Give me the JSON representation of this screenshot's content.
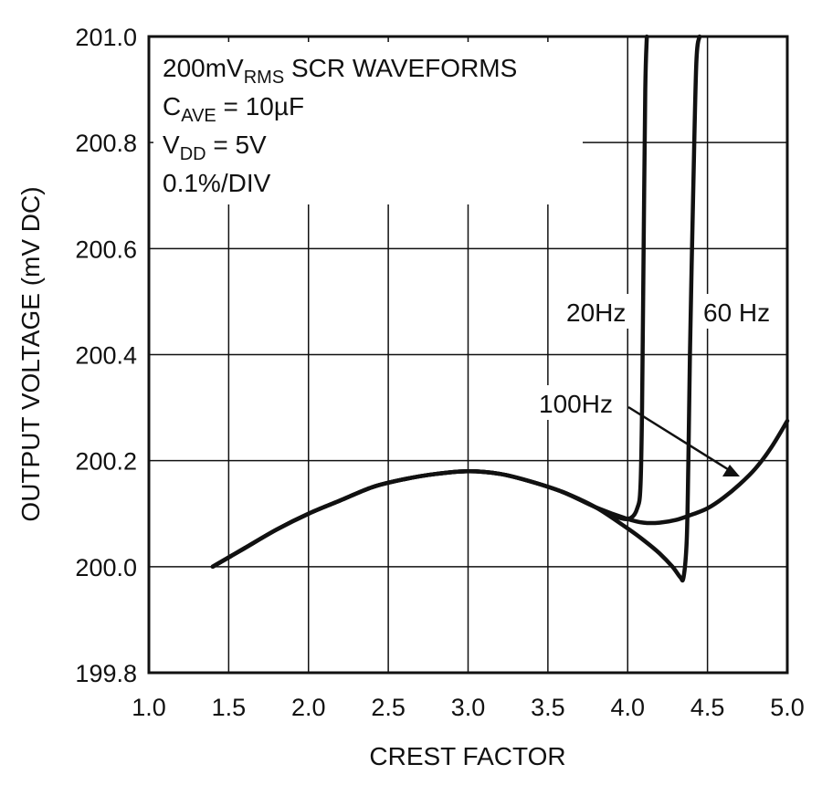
{
  "chart_data": {
    "type": "line",
    "title": "",
    "xlabel": "CREST FACTOR",
    "ylabel": "OUTPUT VOLTAGE (mV DC)",
    "xlim": [
      1.0,
      5.0
    ],
    "ylim": [
      199.8,
      201.0
    ],
    "xticks": [
      1.0,
      1.5,
      2.0,
      2.5,
      3.0,
      3.5,
      4.0,
      4.5,
      5.0
    ],
    "xtick_labels": [
      "1.0",
      "1.5",
      "2.0",
      "2.5",
      "3.0",
      "3.5",
      "4.0",
      "4.5",
      "5.0"
    ],
    "yticks": [
      199.8,
      200.0,
      200.2,
      200.4,
      200.6,
      200.8,
      201.0
    ],
    "ytick_labels": [
      "199.8",
      "200.0",
      "200.2",
      "200.4",
      "200.6",
      "200.8",
      "201.0"
    ],
    "grid": true,
    "annotation": {
      "line1_main": "200mV",
      "line1_sub": "RMS",
      "line1_rest": " SCR WAVEFORMS",
      "line2_main": "C",
      "line2_sub": "AVE",
      "line2_rest": " = 10µF",
      "line3_main": "V",
      "line3_sub": "DD",
      "line3_rest": " = 5V",
      "line4": "0.1%/DIV"
    },
    "series": [
      {
        "name": "20Hz",
        "x": [
          1.4,
          1.6,
          1.8,
          2.0,
          2.2,
          2.4,
          2.6,
          2.8,
          3.0,
          3.2,
          3.4,
          3.6,
          3.8,
          3.95,
          4.02,
          4.06,
          4.08,
          4.09,
          4.1,
          4.11,
          4.12
        ],
        "y": [
          200.0,
          200.035,
          200.07,
          200.1,
          200.125,
          200.15,
          200.165,
          200.175,
          200.18,
          200.175,
          200.16,
          200.14,
          200.112,
          200.092,
          200.092,
          200.11,
          200.15,
          200.3,
          200.6,
          200.9,
          201.0
        ]
      },
      {
        "name": "60Hz",
        "x": [
          1.4,
          1.6,
          1.8,
          2.0,
          2.2,
          2.4,
          2.6,
          2.8,
          3.0,
          3.2,
          3.4,
          3.6,
          3.8,
          4.0,
          4.1,
          4.2,
          4.28,
          4.33,
          4.35,
          4.37,
          4.38,
          4.39,
          4.41,
          4.43,
          4.45
        ],
        "y": [
          200.0,
          200.035,
          200.07,
          200.1,
          200.125,
          200.15,
          200.165,
          200.175,
          200.18,
          200.175,
          200.16,
          200.14,
          200.112,
          200.072,
          200.05,
          200.025,
          200.0,
          199.98,
          199.98,
          200.05,
          200.2,
          200.4,
          200.7,
          200.95,
          201.0
        ]
      },
      {
        "name": "100Hz",
        "x": [
          1.4,
          1.6,
          1.8,
          2.0,
          2.2,
          2.4,
          2.6,
          2.8,
          3.0,
          3.2,
          3.4,
          3.6,
          3.8,
          4.0,
          4.1,
          4.2,
          4.3,
          4.4,
          4.5,
          4.6,
          4.7,
          4.8,
          4.9,
          5.0
        ],
        "y": [
          200.0,
          200.035,
          200.07,
          200.1,
          200.125,
          200.15,
          200.165,
          200.175,
          200.18,
          200.175,
          200.16,
          200.14,
          200.112,
          200.09,
          200.083,
          200.083,
          200.088,
          200.098,
          200.11,
          200.13,
          200.155,
          200.185,
          200.225,
          200.275
        ]
      }
    ],
    "labels": {
      "label_20": "20Hz",
      "label_60": "60 Hz",
      "label_100": "100Hz"
    }
  }
}
